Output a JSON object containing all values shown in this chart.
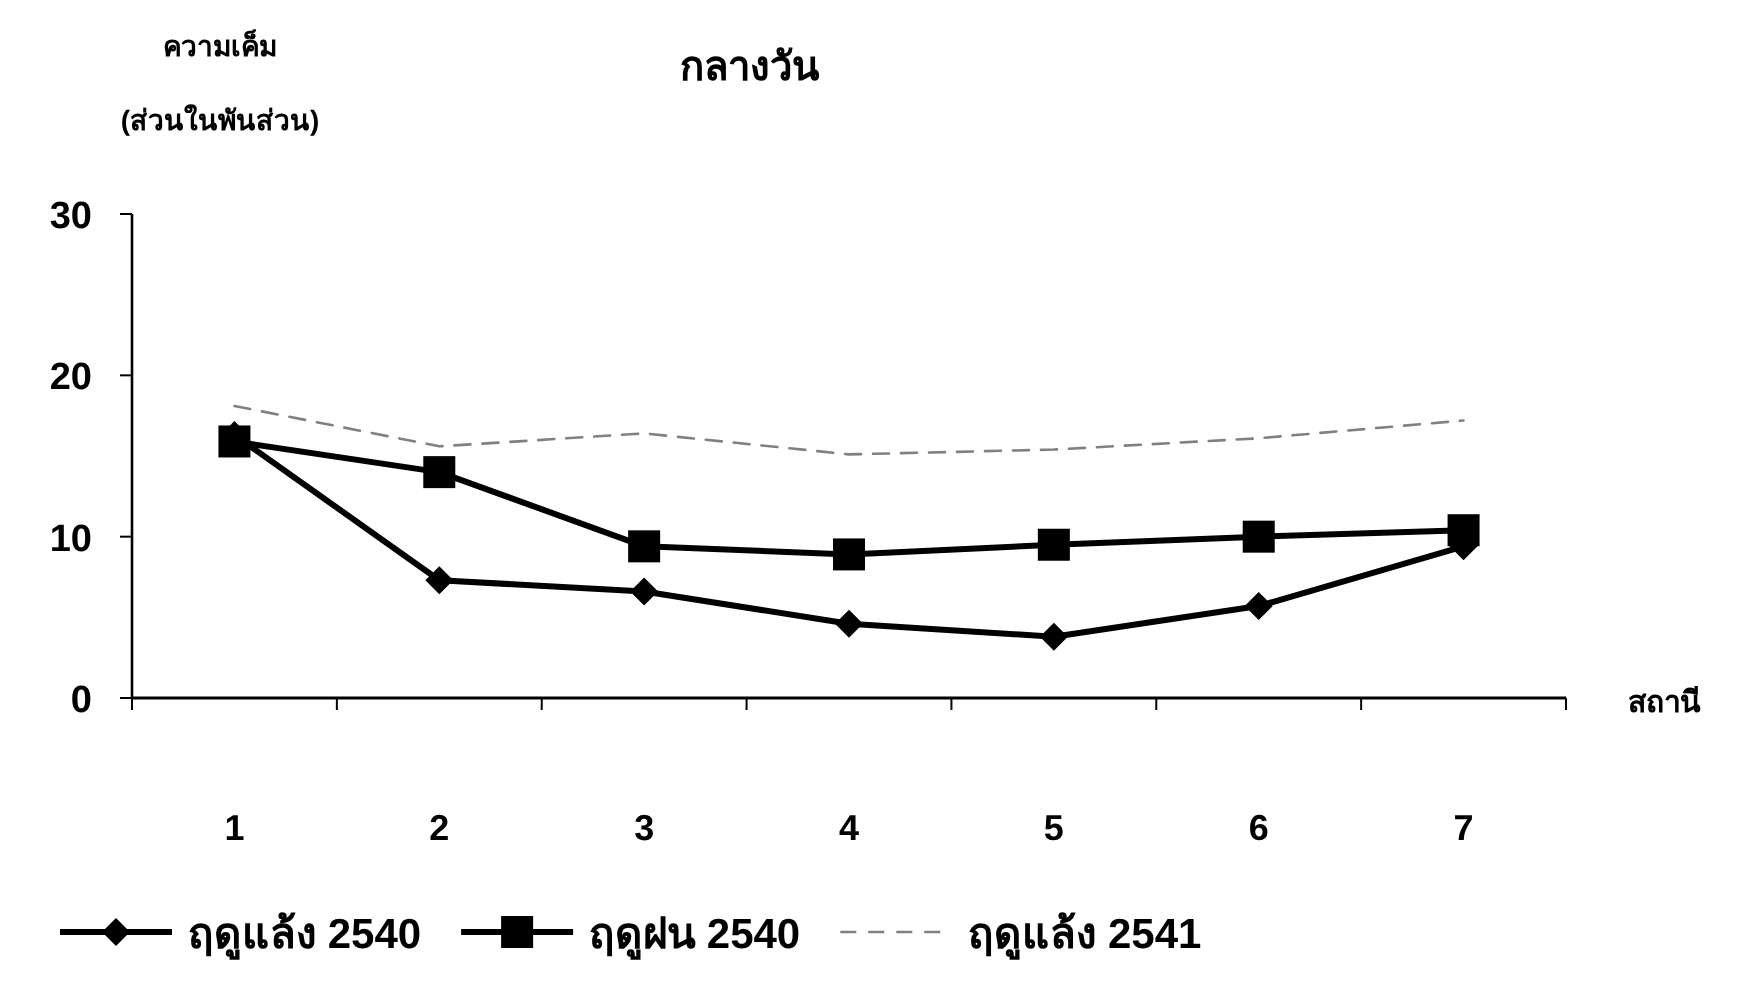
{
  "chart_data": {
    "type": "line",
    "title": "กลางวัน",
    "ylabel": "ความเค็ม (ส่วนในพันส่วน)",
    "xlabel": "สถานี",
    "categories": [
      "1",
      "2",
      "3",
      "4",
      "5",
      "6",
      "7"
    ],
    "series": [
      {
        "name": "ฤดูแล้ง 2540",
        "color": "#000000",
        "marker": "diamond",
        "line_style": "solid",
        "values": [
          16.3,
          7.3,
          6.6,
          4.6,
          3.8,
          5.7,
          9.4
        ]
      },
      {
        "name": "ฤดูฝน 2540",
        "color": "#000000",
        "marker": "square",
        "line_style": "solid",
        "values": [
          15.9,
          14.0,
          9.4,
          8.9,
          9.5,
          10.0,
          10.4
        ]
      },
      {
        "name": "ฤดูแล้ง 2541",
        "color": "#808080",
        "marker": "none",
        "line_style": "dashed",
        "values": [
          18.1,
          15.6,
          16.4,
          15.1,
          15.4,
          16.1,
          17.2
        ]
      }
    ],
    "ylim": [
      0,
      30
    ],
    "yticks": [
      0,
      10,
      20,
      30
    ],
    "grid": false,
    "legend": "bottom"
  }
}
